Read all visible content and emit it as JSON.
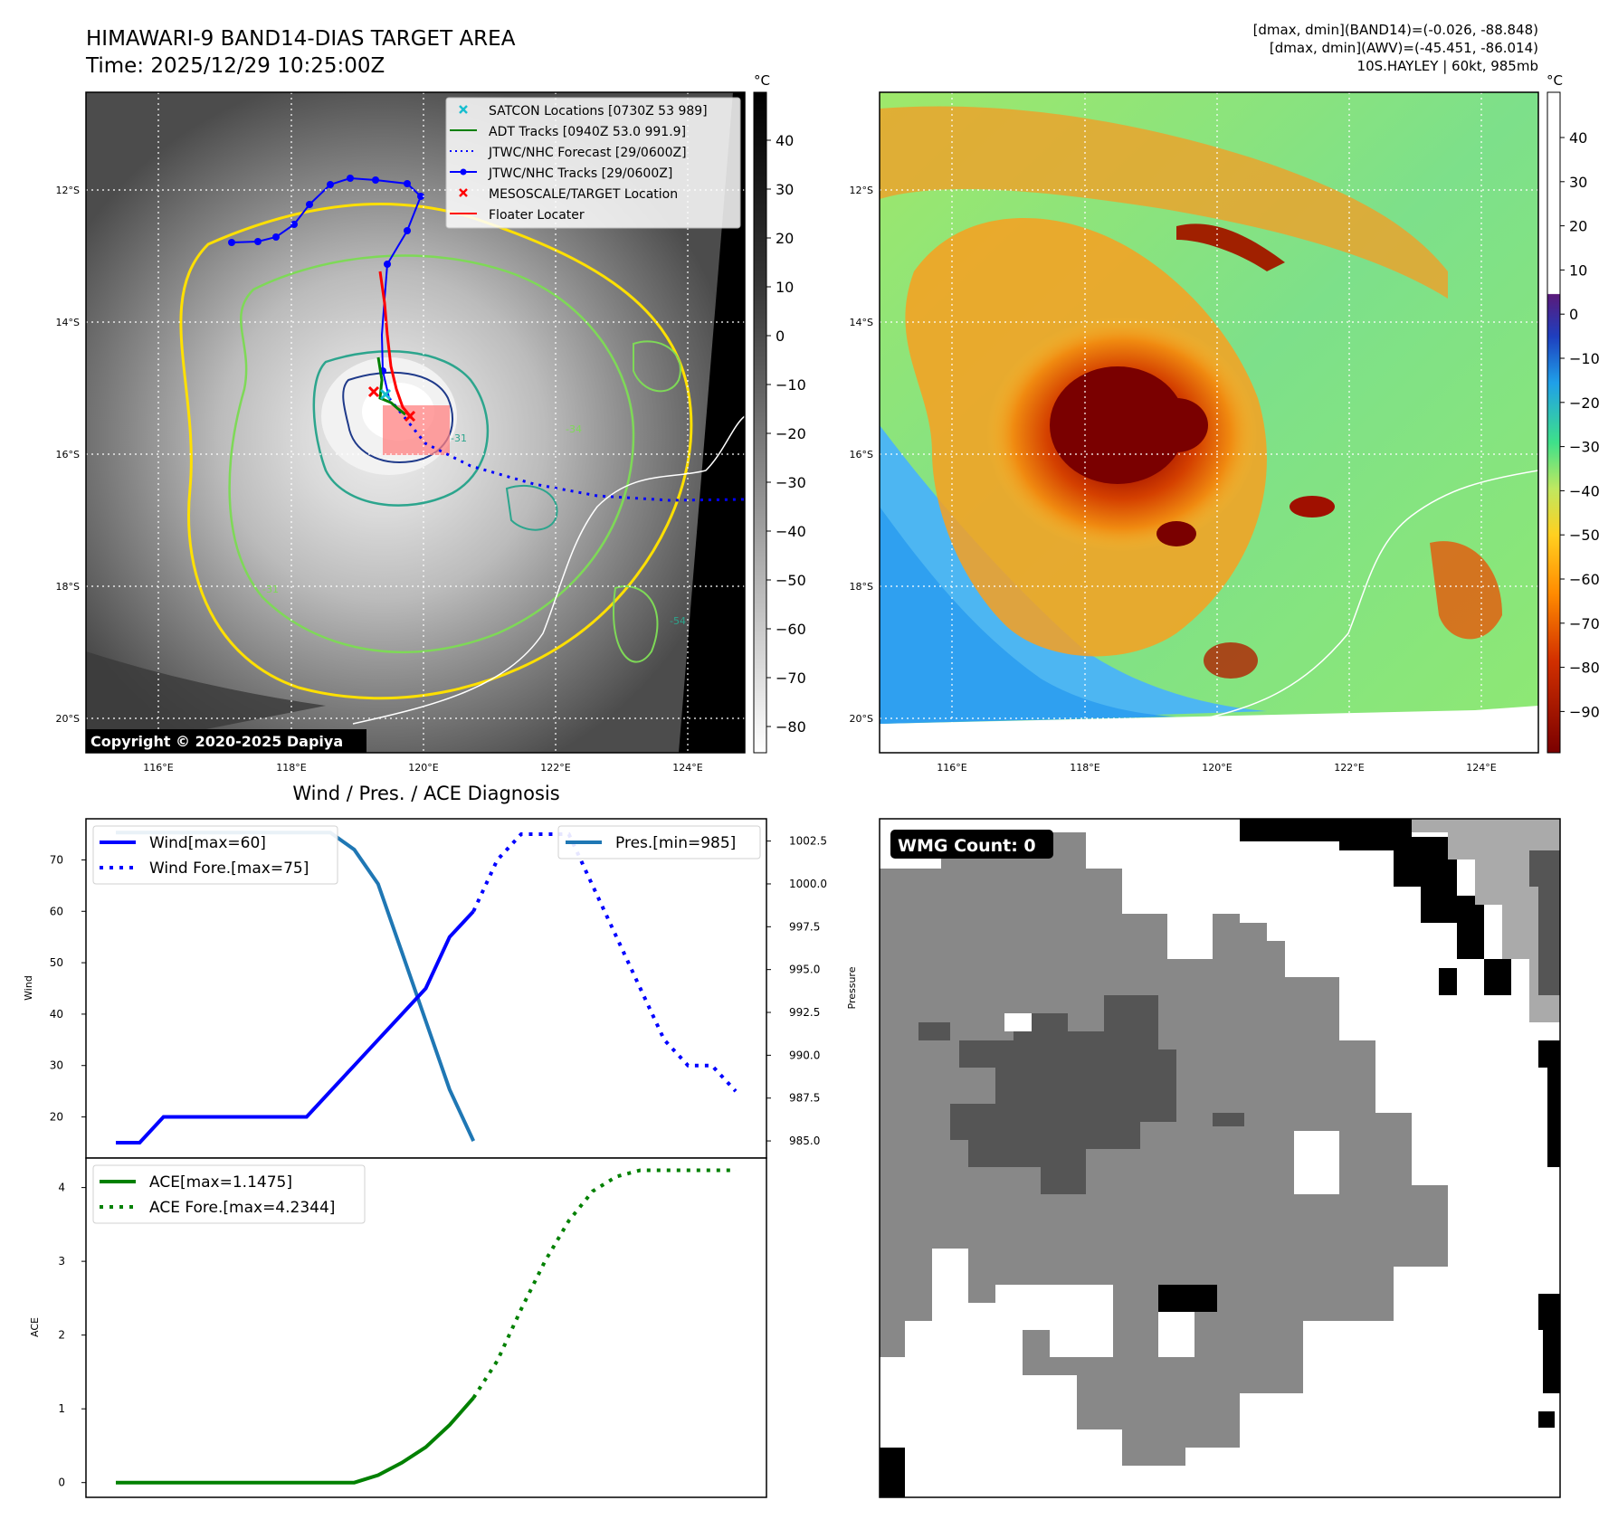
{
  "header": {
    "title_line1": "HIMAWARI-9 BAND14-DIAS TARGET AREA",
    "title_line2": "Time: 2025/12/29 10:25:00Z",
    "info_line1": "[dmax, dmin](BAND14)=(-0.026, -88.848)",
    "info_line2": "[dmax, dmin](AWV)=(-45.451, -86.014)",
    "info_line3": "10S.HAYLEY | 60kt, 985mb"
  },
  "colors": {
    "wind": "#0000ff",
    "pressure": "#1f77b4",
    "ace": "#008000",
    "track_red": "#ff0000",
    "contour_yellow": "#ffe000",
    "contour_green": "#7ed957",
    "contour_teal": "#2ca58d",
    "contour_navy": "#1f3a8a"
  },
  "map_panels": {
    "lon_ticks": [
      "116°E",
      "118°E",
      "120°E",
      "122°E",
      "124°E"
    ],
    "lat_ticks": [
      "12°S",
      "14°S",
      "16°S",
      "18°S",
      "20°S"
    ],
    "copyright": "Copyright © 2020-2025 Dapiya",
    "legend": [
      {
        "label": "SATCON Locations [0730Z 53 989]",
        "marker": "x",
        "color": "#17becf"
      },
      {
        "label": "ADT Tracks [0940Z 53.0 991.9]",
        "marker": "line",
        "color": "#008000"
      },
      {
        "label": "JTWC/NHC Forecast [29/0600Z]",
        "marker": "dotted",
        "color": "#0000ff"
      },
      {
        "label": "JTWC/NHC Tracks [29/0600Z]",
        "marker": "line-dot",
        "color": "#0000ff"
      },
      {
        "label": "MESOSCALE/TARGET Location",
        "marker": "x",
        "color": "#ff0000"
      },
      {
        "label": "Floater Locater",
        "marker": "line",
        "color": "#ff0000"
      }
    ],
    "contour_labels": [
      "-31",
      "-34",
      "-54",
      "-31"
    ],
    "colorbar_gray": {
      "unit": "°C",
      "ticks": [
        "40",
        "30",
        "20",
        "10",
        "0",
        "−10",
        "−20",
        "−30",
        "−40",
        "−50",
        "−60",
        "−70",
        "−80"
      ]
    },
    "colorbar_color": {
      "unit": "°C",
      "ticks": [
        "40",
        "30",
        "20",
        "10",
        "0",
        "−10",
        "−20",
        "−30",
        "−40",
        "−50",
        "−60",
        "−70",
        "−80",
        "−90"
      ]
    }
  },
  "chart_data": [
    {
      "type": "line",
      "title": "Wind / Pres. / ACE Diagnosis",
      "ylabel": "Wind",
      "y2label": "Pressure",
      "y_ticks": [
        "20",
        "30",
        "40",
        "50",
        "60",
        "70"
      ],
      "y2_ticks": [
        "985.0",
        "987.5",
        "990.0",
        "992.5",
        "995.0",
        "997.5",
        "1000.0",
        "1002.5"
      ],
      "ylim": [
        12,
        78
      ],
      "y2lim": [
        984.0,
        1003.8
      ],
      "x": [
        0,
        1,
        2,
        3,
        4,
        5,
        6,
        7,
        8,
        9,
        10,
        11,
        12,
        13,
        14,
        15,
        16,
        17,
        18,
        19,
        20,
        21,
        22,
        23,
        24,
        25,
        26
      ],
      "series": [
        {
          "name": "Wind[max=60]",
          "style": "solid",
          "x": [
            0,
            1,
            2,
            3,
            4,
            5,
            6,
            7,
            8,
            9,
            10,
            11,
            12,
            13,
            14,
            15
          ],
          "values": [
            15,
            15,
            20,
            20,
            20,
            20,
            20,
            20,
            20,
            25,
            30,
            35,
            40,
            45,
            55,
            60
          ]
        },
        {
          "name": "Wind Fore.[max=75]",
          "style": "dotted",
          "x": [
            15,
            16,
            17,
            18,
            19,
            20,
            21,
            22,
            23,
            24,
            25,
            26
          ],
          "values": [
            60,
            70,
            75,
            75,
            75,
            65,
            55,
            45,
            35,
            30,
            30,
            25
          ]
        },
        {
          "name": "Pres.[min=985]",
          "style": "solid",
          "axis": "right",
          "x": [
            0,
            1,
            2,
            3,
            4,
            5,
            6,
            7,
            8,
            9,
            10,
            11,
            12,
            13,
            14,
            15
          ],
          "values": [
            1003,
            1003,
            1003,
            1003,
            1003,
            1003,
            1003,
            1003,
            1003,
            1003,
            1002,
            1000,
            996,
            992,
            988,
            985
          ]
        }
      ]
    },
    {
      "type": "line",
      "ylabel": "ACE",
      "y_ticks": [
        "0",
        "1",
        "2",
        "3",
        "4"
      ],
      "ylim": [
        -0.2,
        4.4
      ],
      "series": [
        {
          "name": "ACE[max=1.1475]",
          "style": "solid",
          "x": [
            0,
            1,
            2,
            3,
            4,
            5,
            6,
            7,
            8,
            9,
            10,
            11,
            12,
            13,
            14,
            15
          ],
          "values": [
            0,
            0,
            0,
            0,
            0,
            0,
            0,
            0,
            0,
            0,
            0,
            0.1,
            0.27,
            0.48,
            0.78,
            1.1475
          ]
        },
        {
          "name": "ACE Fore.[max=4.2344]",
          "style": "dotted",
          "x": [
            15,
            16,
            17,
            18,
            19,
            20,
            21,
            22,
            23,
            24,
            25,
            26
          ],
          "values": [
            1.1475,
            1.65,
            2.35,
            3.0,
            3.55,
            3.95,
            4.15,
            4.2344,
            4.2344,
            4.2344,
            4.2344,
            4.2344
          ]
        }
      ]
    }
  ],
  "wmg_panel": {
    "label": "WMG Count: 0"
  }
}
